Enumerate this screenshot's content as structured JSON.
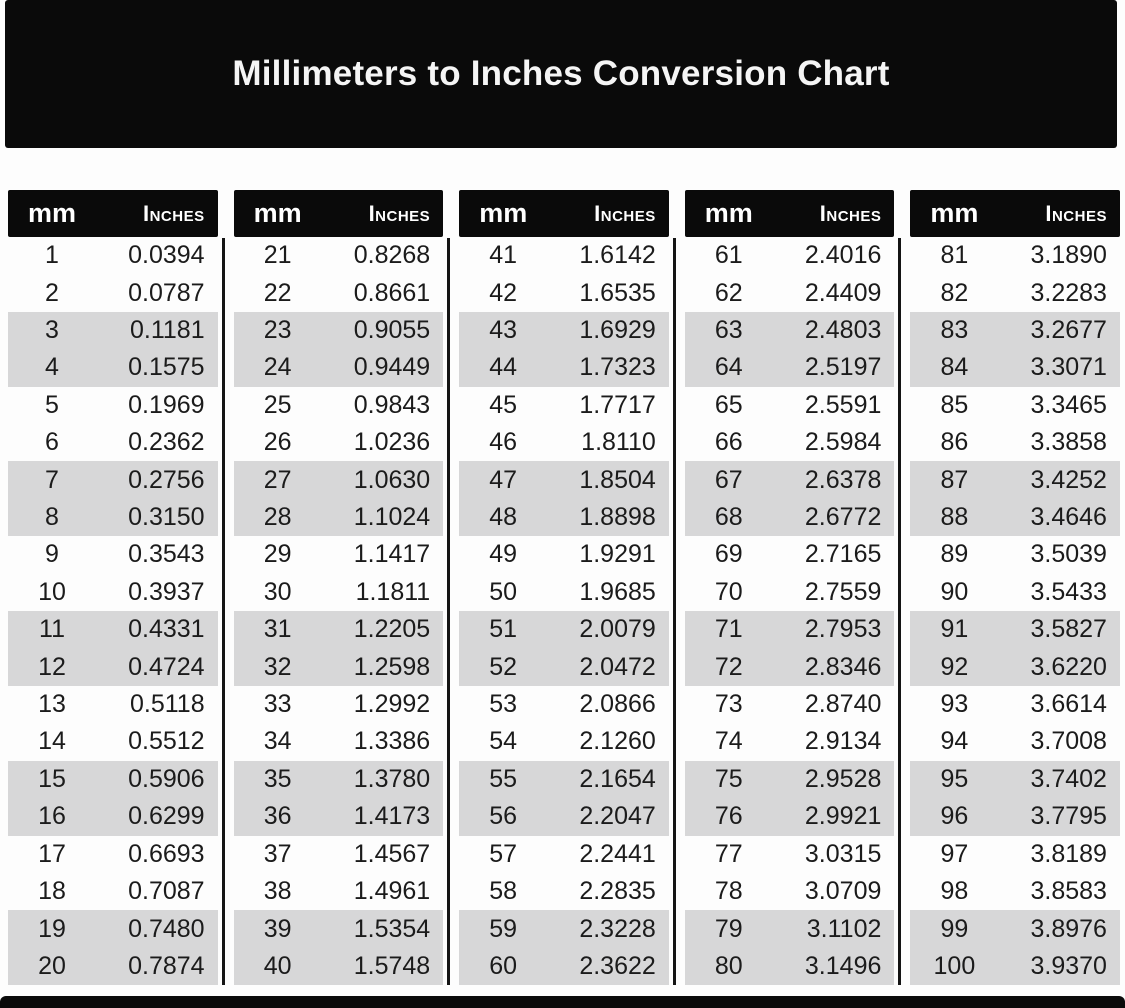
{
  "title_bar": {
    "title": "Millimeters to Inches Conversion Chart"
  },
  "table": {
    "header_mm": "mm",
    "header_inches": "Inches"
  },
  "colors": {
    "banner_black": "#0a0a0a",
    "stripe_gray": "#d7d7d8",
    "text_dark": "#1b1b1b",
    "text_white": "#f5f5f5"
  },
  "chart_data": {
    "type": "table",
    "title": "Millimeters to Inches Conversion Chart",
    "column_headers": [
      "mm",
      "Inches"
    ],
    "stripe_pattern": "two white rows then two gray rows, repeating",
    "groups": [
      {
        "rows": [
          [
            "1",
            "0.0394"
          ],
          [
            "2",
            "0.0787"
          ],
          [
            "3",
            "0.1181"
          ],
          [
            "4",
            "0.1575"
          ],
          [
            "5",
            "0.1969"
          ],
          [
            "6",
            "0.2362"
          ],
          [
            "7",
            "0.2756"
          ],
          [
            "8",
            "0.3150"
          ],
          [
            "9",
            "0.3543"
          ],
          [
            "10",
            "0.3937"
          ],
          [
            "11",
            "0.4331"
          ],
          [
            "12",
            "0.4724"
          ],
          [
            "13",
            "0.5118"
          ],
          [
            "14",
            "0.5512"
          ],
          [
            "15",
            "0.5906"
          ],
          [
            "16",
            "0.6299"
          ],
          [
            "17",
            "0.6693"
          ],
          [
            "18",
            "0.7087"
          ],
          [
            "19",
            "0.7480"
          ],
          [
            "20",
            "0.7874"
          ]
        ]
      },
      {
        "rows": [
          [
            "21",
            "0.8268"
          ],
          [
            "22",
            "0.8661"
          ],
          [
            "23",
            "0.9055"
          ],
          [
            "24",
            "0.9449"
          ],
          [
            "25",
            "0.9843"
          ],
          [
            "26",
            "1.0236"
          ],
          [
            "27",
            "1.0630"
          ],
          [
            "28",
            "1.1024"
          ],
          [
            "29",
            "1.1417"
          ],
          [
            "30",
            "1.1811"
          ],
          [
            "31",
            "1.2205"
          ],
          [
            "32",
            "1.2598"
          ],
          [
            "33",
            "1.2992"
          ],
          [
            "34",
            "1.3386"
          ],
          [
            "35",
            "1.3780"
          ],
          [
            "36",
            "1.4173"
          ],
          [
            "37",
            "1.4567"
          ],
          [
            "38",
            "1.4961"
          ],
          [
            "39",
            "1.5354"
          ],
          [
            "40",
            "1.5748"
          ]
        ]
      },
      {
        "rows": [
          [
            "41",
            "1.6142"
          ],
          [
            "42",
            "1.6535"
          ],
          [
            "43",
            "1.6929"
          ],
          [
            "44",
            "1.7323"
          ],
          [
            "45",
            "1.7717"
          ],
          [
            "46",
            "1.8110"
          ],
          [
            "47",
            "1.8504"
          ],
          [
            "48",
            "1.8898"
          ],
          [
            "49",
            "1.9291"
          ],
          [
            "50",
            "1.9685"
          ],
          [
            "51",
            "2.0079"
          ],
          [
            "52",
            "2.0472"
          ],
          [
            "53",
            "2.0866"
          ],
          [
            "54",
            "2.1260"
          ],
          [
            "55",
            "2.1654"
          ],
          [
            "56",
            "2.2047"
          ],
          [
            "57",
            "2.2441"
          ],
          [
            "58",
            "2.2835"
          ],
          [
            "59",
            "2.3228"
          ],
          [
            "60",
            "2.3622"
          ]
        ]
      },
      {
        "rows": [
          [
            "61",
            "2.4016"
          ],
          [
            "62",
            "2.4409"
          ],
          [
            "63",
            "2.4803"
          ],
          [
            "64",
            "2.5197"
          ],
          [
            "65",
            "2.5591"
          ],
          [
            "66",
            "2.5984"
          ],
          [
            "67",
            "2.6378"
          ],
          [
            "68",
            "2.6772"
          ],
          [
            "69",
            "2.7165"
          ],
          [
            "70",
            "2.7559"
          ],
          [
            "71",
            "2.7953"
          ],
          [
            "72",
            "2.8346"
          ],
          [
            "73",
            "2.8740"
          ],
          [
            "74",
            "2.9134"
          ],
          [
            "75",
            "2.9528"
          ],
          [
            "76",
            "2.9921"
          ],
          [
            "77",
            "3.0315"
          ],
          [
            "78",
            "3.0709"
          ],
          [
            "79",
            "3.1102"
          ],
          [
            "80",
            "3.1496"
          ]
        ]
      },
      {
        "rows": [
          [
            "81",
            "3.1890"
          ],
          [
            "82",
            "3.2283"
          ],
          [
            "83",
            "3.2677"
          ],
          [
            "84",
            "3.3071"
          ],
          [
            "85",
            "3.3465"
          ],
          [
            "86",
            "3.3858"
          ],
          [
            "87",
            "3.4252"
          ],
          [
            "88",
            "3.4646"
          ],
          [
            "89",
            "3.5039"
          ],
          [
            "90",
            "3.5433"
          ],
          [
            "91",
            "3.5827"
          ],
          [
            "92",
            "3.6220"
          ],
          [
            "93",
            "3.6614"
          ],
          [
            "94",
            "3.7008"
          ],
          [
            "95",
            "3.7402"
          ],
          [
            "96",
            "3.7795"
          ],
          [
            "97",
            "3.8189"
          ],
          [
            "98",
            "3.8583"
          ],
          [
            "99",
            "3.8976"
          ],
          [
            "100",
            "3.9370"
          ]
        ]
      }
    ]
  }
}
